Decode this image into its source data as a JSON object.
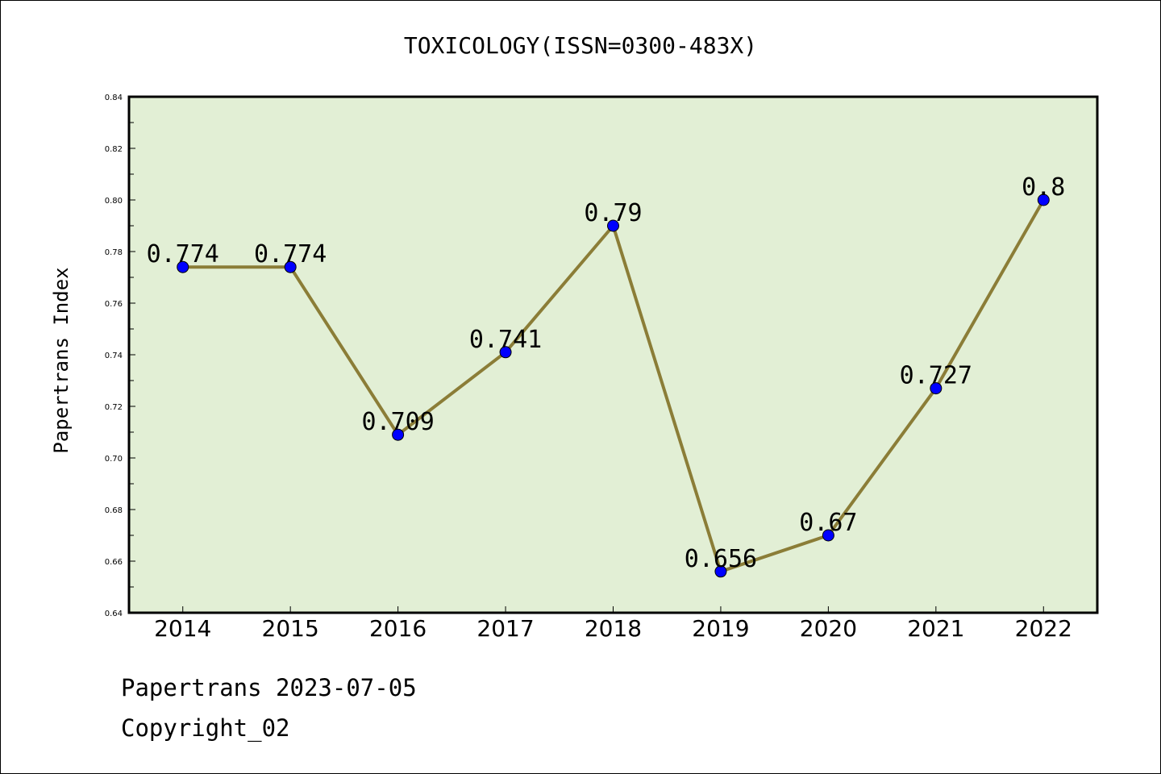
{
  "chart_data": {
    "type": "line",
    "title": "TOXICOLOGY(ISSN=0300-483X)",
    "xlabel": "",
    "ylabel": "Papertrans Index",
    "categories": [
      "2014",
      "2015",
      "2016",
      "2017",
      "2018",
      "2019",
      "2020",
      "2021",
      "2022"
    ],
    "series": [
      {
        "values": [
          0.774,
          0.774,
          0.709,
          0.741,
          0.79,
          0.656,
          0.67,
          0.727,
          0.8
        ],
        "data_labels": [
          "0.774",
          "0.774",
          "0.709",
          "0.741",
          "0.79",
          "0.656",
          "0.67",
          "0.727",
          "0.8"
        ]
      }
    ],
    "ylim": [
      0.64,
      0.84
    ],
    "yticks": [
      "0.64",
      "0.66",
      "0.68",
      "0.70",
      "0.72",
      "0.74",
      "0.76",
      "0.78",
      "0.80",
      "0.82",
      "0.84"
    ],
    "grid": false,
    "colors": {
      "plot_background": "#e2efd5",
      "line": "#8b7d37",
      "marker": "#0000ff"
    }
  },
  "footer": {
    "line1": "Papertrans 2023-07-05",
    "line2": "Copyright_02"
  }
}
